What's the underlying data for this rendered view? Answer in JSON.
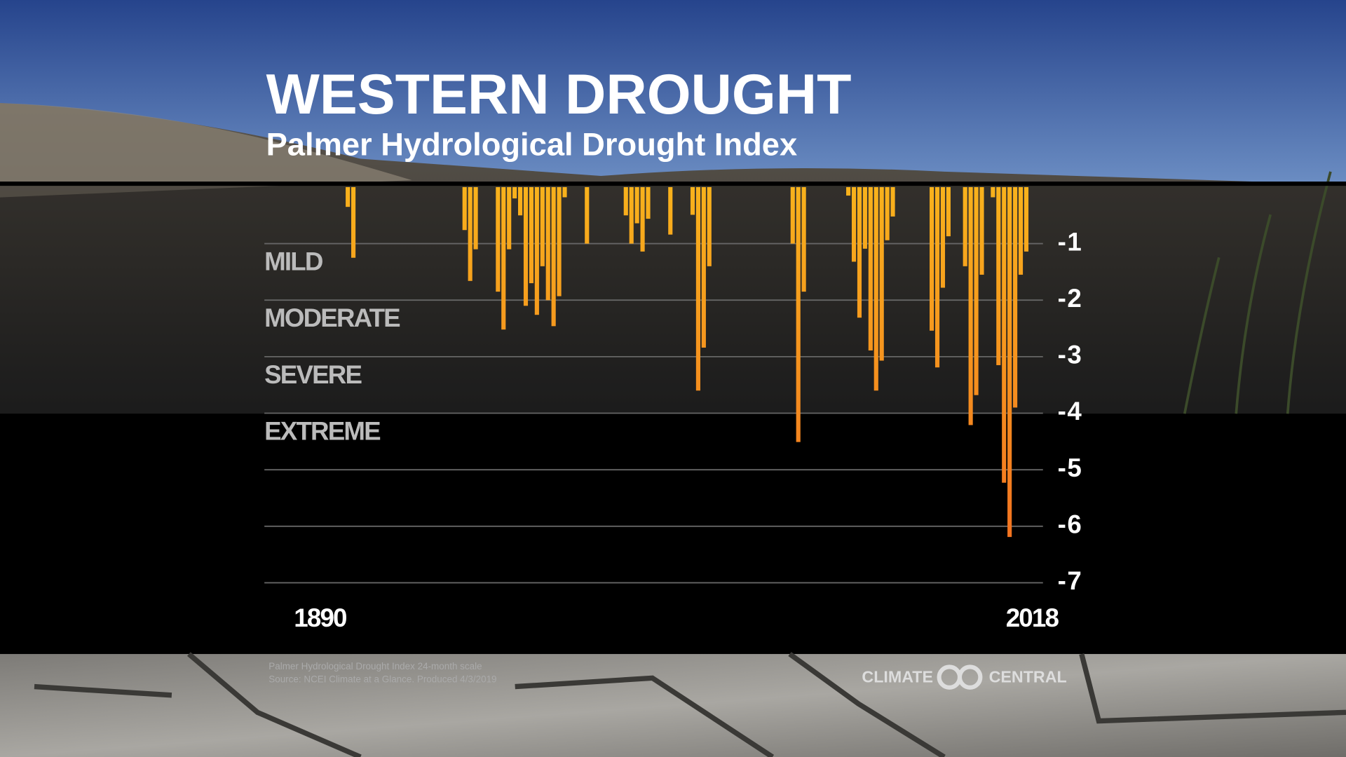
{
  "chart_data": {
    "type": "bar",
    "title": "WESTERN DROUGHT",
    "subtitle": "Palmer Hydrological Drought Index",
    "annotations": [
      "MILD",
      "MODERATE",
      "SEVERE",
      "EXTREME"
    ],
    "x": [
      1895,
      1896,
      1916,
      1917,
      1918,
      1922,
      1923,
      1924,
      1925,
      1926,
      1927,
      1928,
      1929,
      1930,
      1931,
      1932,
      1933,
      1934,
      1938,
      1945,
      1946,
      1947,
      1948,
      1949,
      1953,
      1957,
      1958,
      1959,
      1960,
      1975,
      1976,
      1977,
      1985,
      1986,
      1987,
      1988,
      1989,
      1990,
      1991,
      1992,
      1993,
      2000,
      2001,
      2002,
      2003,
      2006,
      2007,
      2008,
      2009,
      2011,
      2012,
      2013,
      2014,
      2015,
      2016,
      2017
    ],
    "values": [
      -0.35,
      -1.25,
      -0.76,
      -1.66,
      -1.1,
      -1.85,
      -2.52,
      -1.1,
      -0.2,
      -0.5,
      -2.1,
      -1.7,
      -2.26,
      -1.4,
      -2.0,
      -2.46,
      -1.93,
      -0.18,
      -1.0,
      -0.5,
      -1.0,
      -0.64,
      -1.14,
      -0.56,
      -0.84,
      -0.49,
      -3.6,
      -2.84,
      -1.4,
      -1.0,
      -4.51,
      -1.85,
      -0.15,
      -1.32,
      -2.31,
      -1.09,
      -2.89,
      -3.6,
      -3.07,
      -0.94,
      -0.52,
      -2.54,
      -3.19,
      -1.78,
      -0.87,
      -1.4,
      -4.21,
      -3.68,
      -1.55,
      -0.18,
      -3.15,
      -5.23,
      -6.19,
      -3.9,
      -1.55,
      -1.14
    ],
    "color": "#f8b21c",
    "color_bottom": "#f26b21",
    "xlim": [
      1880,
      2020
    ],
    "xticks": [
      1890,
      2018
    ],
    "ylim": [
      -7,
      0
    ],
    "yticks": [
      -1,
      -2,
      -3,
      -4,
      -5,
      -6,
      -7
    ],
    "grid": true,
    "footnotes": [
      "Palmer Hydrological Drought Index 24-month scale",
      "Source: NCEI Climate at a Glance. Produced 4/3/2019"
    ],
    "logo": [
      "CLIMATE",
      "CENTRAL"
    ]
  }
}
